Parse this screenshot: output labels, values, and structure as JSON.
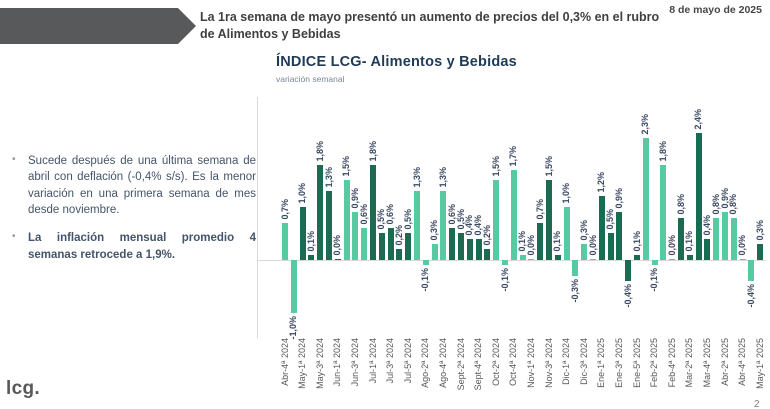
{
  "meta": {
    "date": "8 de mayo de 2025",
    "page_number": "2",
    "logo": "lcg."
  },
  "header": {
    "statement": "La 1ra semana de mayo presentó un aumento de precios del 0,3% en el rubro de Alimentos y Bebidas"
  },
  "bullets": [
    {
      "marker": "•",
      "text": "Sucede después de una última semana de abril con deflación (-0,4% s/s). Es la menor variación en una primera semana de mes desde noviembre."
    },
    {
      "marker": "•",
      "text": "La inflación mensual promedio 4 semanas retrocede a 1,9%."
    }
  ],
  "chart_data": {
    "type": "bar",
    "title": "ÍNDICE LCG- Alimentos y Bebidas",
    "subtitle": "variación semanal",
    "xlabel": "",
    "ylabel": "",
    "unit": "%",
    "ylim": [
      -1.2,
      2.6
    ],
    "grid": false,
    "legend": "none",
    "colors": {
      "light": "#56CBA2",
      "dark": "#1A6B52"
    },
    "bars": [
      {
        "tick": "Abr-4ª 2024",
        "value": 0.7,
        "label": "0,7%",
        "shade": "light"
      },
      {
        "tick": "",
        "value": -1.0,
        "label": "-1,0%",
        "shade": "light"
      },
      {
        "tick": "May-1ª 2024",
        "value": 1.0,
        "label": "1,0%",
        "shade": "dark"
      },
      {
        "tick": "",
        "value": 0.1,
        "label": "0,1%",
        "shade": "dark"
      },
      {
        "tick": "May-3ª 2024",
        "value": 1.8,
        "label": "1,8%",
        "shade": "dark"
      },
      {
        "tick": "",
        "value": 1.3,
        "label": "1,3%",
        "shade": "dark"
      },
      {
        "tick": "Jun-1ª 2024",
        "value": 0.0,
        "label": "0,0%",
        "shade": "dark"
      },
      {
        "tick": "",
        "value": 1.5,
        "label": "1,5%",
        "shade": "light"
      },
      {
        "tick": "Jun-3ª 2024",
        "value": 0.9,
        "label": "0,9%",
        "shade": "light"
      },
      {
        "tick": "",
        "value": 0.6,
        "label": "0,6%",
        "shade": "light"
      },
      {
        "tick": "Jul-1ª 2024",
        "value": 1.8,
        "label": "1,8%",
        "shade": "dark"
      },
      {
        "tick": "",
        "value": 0.5,
        "label": "0,5%",
        "shade": "dark"
      },
      {
        "tick": "Jul-3ª 2024",
        "value": 0.6,
        "label": "0,6%",
        "shade": "dark"
      },
      {
        "tick": "",
        "value": 0.2,
        "label": "0,2%",
        "shade": "dark"
      },
      {
        "tick": "Jul-5ª 2024",
        "value": 0.5,
        "label": "0,5%",
        "shade": "dark"
      },
      {
        "tick": "",
        "value": 1.3,
        "label": "1,3%",
        "shade": "light"
      },
      {
        "tick": "Ago-2ª 2024",
        "value": -0.1,
        "label": "-0,1%",
        "shade": "light"
      },
      {
        "tick": "",
        "value": 0.3,
        "label": "0,3%",
        "shade": "light"
      },
      {
        "tick": "Ago-4ª 2024",
        "value": 1.3,
        "label": "1,3%",
        "shade": "light"
      },
      {
        "tick": "",
        "value": 0.6,
        "label": "0,6%",
        "shade": "dark"
      },
      {
        "tick": "Sept-2ª 2024",
        "value": 0.5,
        "label": "0,5%",
        "shade": "dark"
      },
      {
        "tick": "",
        "value": 0.4,
        "label": "0,4%",
        "shade": "dark"
      },
      {
        "tick": "Sept-4ª 2024",
        "value": 0.4,
        "label": "0,4%",
        "shade": "dark"
      },
      {
        "tick": "",
        "value": 0.2,
        "label": "0,2%",
        "shade": "dark"
      },
      {
        "tick": "Oct-2ª 2024",
        "value": 1.5,
        "label": "1,5%",
        "shade": "light"
      },
      {
        "tick": "",
        "value": -0.1,
        "label": "-0,1%",
        "shade": "light"
      },
      {
        "tick": "Oct-4ª 2024",
        "value": 1.7,
        "label": "1,7%",
        "shade": "light"
      },
      {
        "tick": "",
        "value": 0.1,
        "label": "0,1%",
        "shade": "light"
      },
      {
        "tick": "Nov-1ª 2024",
        "value": 0.0,
        "label": "0,0%",
        "shade": "light"
      },
      {
        "tick": "",
        "value": 0.7,
        "label": "0,7%",
        "shade": "dark"
      },
      {
        "tick": "Nov-3ª 2024",
        "value": 1.5,
        "label": "1,5%",
        "shade": "dark"
      },
      {
        "tick": "",
        "value": 0.1,
        "label": "0,1%",
        "shade": "dark"
      },
      {
        "tick": "Dic-1ª 2024",
        "value": 1.0,
        "label": "1,0%",
        "shade": "light"
      },
      {
        "tick": "",
        "value": -0.3,
        "label": "-0,3%",
        "shade": "light"
      },
      {
        "tick": "Dic-3ª 2024",
        "value": 0.3,
        "label": "0,3%",
        "shade": "light"
      },
      {
        "tick": "",
        "value": 0.0,
        "label": "0,0%",
        "shade": "light"
      },
      {
        "tick": "Ene-1ª 2025",
        "value": 1.2,
        "label": "1,2%",
        "shade": "dark"
      },
      {
        "tick": "",
        "value": 0.5,
        "label": "0,5%",
        "shade": "dark"
      },
      {
        "tick": "Ene-3ª 2025",
        "value": 0.9,
        "label": "0,9%",
        "shade": "dark"
      },
      {
        "tick": "",
        "value": -0.4,
        "label": "-0,4%",
        "shade": "dark"
      },
      {
        "tick": "Ene-5ª 2025",
        "value": 0.1,
        "label": "0,1%",
        "shade": "dark"
      },
      {
        "tick": "",
        "value": 2.3,
        "label": "2,3%",
        "shade": "light"
      },
      {
        "tick": "Feb-2ª 2025",
        "value": -0.1,
        "label": "-0,1%",
        "shade": "light"
      },
      {
        "tick": "",
        "value": 1.8,
        "label": "1,8%",
        "shade": "light"
      },
      {
        "tick": "Feb-4ª 2025",
        "value": 0.0,
        "label": "0,0%",
        "shade": "light"
      },
      {
        "tick": "",
        "value": 0.8,
        "label": "0,8%",
        "shade": "dark"
      },
      {
        "tick": "Mar-2ª 2025",
        "value": 0.1,
        "label": "0,1%",
        "shade": "dark"
      },
      {
        "tick": "",
        "value": 2.4,
        "label": "2,4%",
        "shade": "dark"
      },
      {
        "tick": "Mar-4ª 2025",
        "value": 0.4,
        "label": "0,4%",
        "shade": "dark"
      },
      {
        "tick": "",
        "value": 0.8,
        "label": "0,8%",
        "shade": "light"
      },
      {
        "tick": "Abr-2ª 2025",
        "value": 0.9,
        "label": "0,9%",
        "shade": "light"
      },
      {
        "tick": "",
        "value": 0.8,
        "label": "0,8%",
        "shade": "light"
      },
      {
        "tick": "Abr-4ª 2025",
        "value": 0.0,
        "label": "0,0%",
        "shade": "light"
      },
      {
        "tick": "",
        "value": -0.4,
        "label": "-0,4%",
        "shade": "light"
      },
      {
        "tick": "May-1ª 2025",
        "value": 0.3,
        "label": "0,3%",
        "shade": "dark"
      }
    ]
  }
}
